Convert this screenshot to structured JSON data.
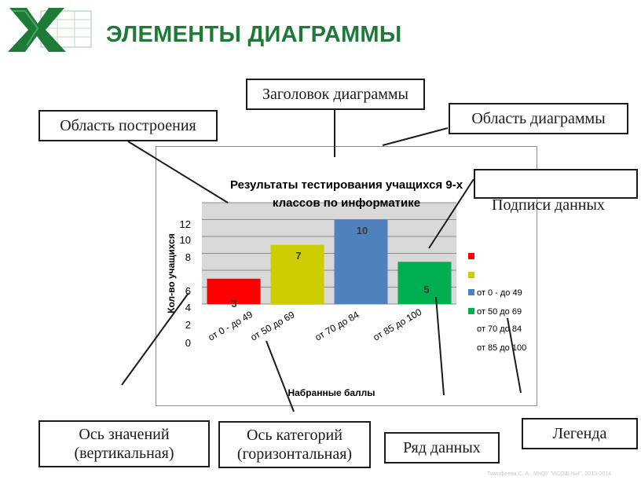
{
  "slide": {
    "title": "ЭЛЕМЕНТЫ ДИАГРАММЫ",
    "footer": "Тимофеева С. А., МКОУ \"ИСОШ №4\", 2013-2014",
    "logo_icon": "excel-logo-icon"
  },
  "callouts": {
    "chart_title": "Заголовок диаграммы",
    "plot_area": "Область построения",
    "chart_area": "Область диаграммы",
    "data_labels": "Подписи данных",
    "value_axis": [
      "Ось значений",
      "(вертикальная)"
    ],
    "category_axis": [
      "Ось категорий",
      "(горизонтальная)"
    ],
    "data_series": "Ряд данных",
    "legend": "Легенда"
  },
  "chart_data": {
    "type": "bar",
    "title_lines": [
      "Результаты тестирования учащихся 9-х",
      "классов по информатике"
    ],
    "xlabel": "Набранные баллы",
    "ylabel": "Кол-во учащихся",
    "categories": [
      "от 0 - до 49",
      "от 50 до 69",
      "от 70 до 84",
      "от 85 до 100"
    ],
    "values": [
      3,
      7,
      10,
      5
    ],
    "data_labels": [
      "3",
      "7",
      "10",
      "5"
    ],
    "colors": [
      "#ff0000",
      "#cccc00",
      "#4f81bd",
      "#00b050"
    ],
    "y_ticks": [
      "0",
      "2",
      "4",
      "6",
      "8",
      "10",
      "12"
    ],
    "ylim": [
      0,
      12
    ],
    "grid": true,
    "legend_position": "right",
    "legend": [
      "",
      "",
      "от 0 - до 49",
      "от 50 до 69",
      "от 70 до 84",
      "от 85 до 100"
    ],
    "legend_colors": [
      "#ff0000",
      "#cccc00",
      "#4f81bd",
      "#00b050",
      "",
      ""
    ]
  }
}
